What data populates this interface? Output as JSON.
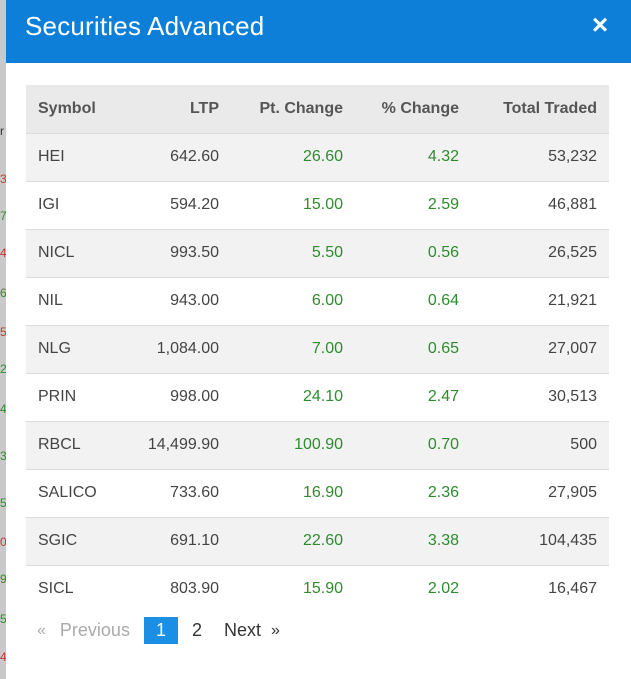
{
  "modal": {
    "title": "Securities Advanced",
    "close_icon": "×"
  },
  "table": {
    "headers": [
      "Symbol",
      "LTP",
      "Pt. Change",
      "% Change",
      "Total Traded"
    ],
    "rows": [
      {
        "symbol": "HEI",
        "ltp": "642.60",
        "pt_change": "26.60",
        "pct_change": "4.32",
        "total_traded": "53,232"
      },
      {
        "symbol": "IGI",
        "ltp": "594.20",
        "pt_change": "15.00",
        "pct_change": "2.59",
        "total_traded": "46,881"
      },
      {
        "symbol": "NICL",
        "ltp": "993.50",
        "pt_change": "5.50",
        "pct_change": "0.56",
        "total_traded": "26,525"
      },
      {
        "symbol": "NIL",
        "ltp": "943.00",
        "pt_change": "6.00",
        "pct_change": "0.64",
        "total_traded": "21,921"
      },
      {
        "symbol": "NLG",
        "ltp": "1,084.00",
        "pt_change": "7.00",
        "pct_change": "0.65",
        "total_traded": "27,007"
      },
      {
        "symbol": "PRIN",
        "ltp": "998.00",
        "pt_change": "24.10",
        "pct_change": "2.47",
        "total_traded": "30,513"
      },
      {
        "symbol": "RBCL",
        "ltp": "14,499.90",
        "pt_change": "100.90",
        "pct_change": "0.70",
        "total_traded": "500"
      },
      {
        "symbol": "SALICO",
        "ltp": "733.60",
        "pt_change": "16.90",
        "pct_change": "2.36",
        "total_traded": "27,905"
      },
      {
        "symbol": "SGIC",
        "ltp": "691.10",
        "pt_change": "22.60",
        "pct_change": "3.38",
        "total_traded": "104,435"
      },
      {
        "symbol": "SICL",
        "ltp": "803.90",
        "pt_change": "15.90",
        "pct_change": "2.02",
        "total_traded": "16,467"
      }
    ]
  },
  "pagination": {
    "prev_arrow": "«",
    "prev_label": "Previous",
    "pages": [
      "1",
      "2"
    ],
    "current": "1",
    "next_label": "Next",
    "next_arrow": "»"
  },
  "backdrop": {
    "digits": [
      {
        "text": "r",
        "color": "dark"
      },
      {
        "text": "3",
        "color": "red"
      },
      {
        "text": "7",
        "color": "green"
      },
      {
        "text": "4",
        "color": "red"
      },
      {
        "text": "6",
        "color": "green"
      },
      {
        "text": "5",
        "color": "red"
      },
      {
        "text": "2",
        "color": "green"
      },
      {
        "text": "4",
        "color": "green"
      },
      {
        "text": "3",
        "color": "green"
      },
      {
        "text": "5",
        "color": "green"
      },
      {
        "text": "0",
        "color": "red"
      },
      {
        "text": "9",
        "color": "green"
      },
      {
        "text": "5",
        "color": "green"
      },
      {
        "text": "4",
        "color": "red"
      }
    ]
  },
  "colors": {
    "header_bg": "#0d7fd8",
    "positive": "#2e8b2e",
    "page_active": "#1a8fe3"
  }
}
